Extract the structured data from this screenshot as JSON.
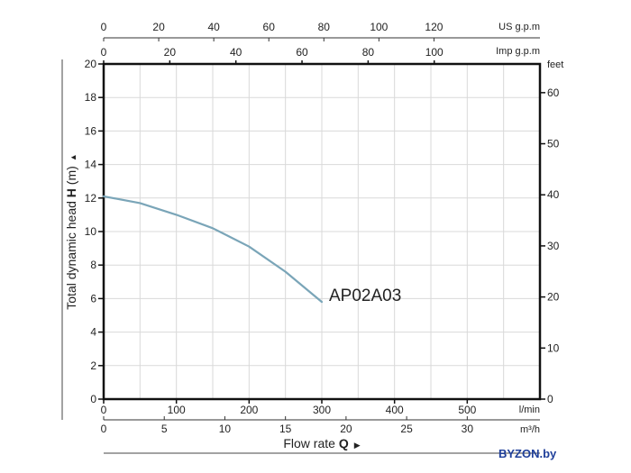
{
  "chart_data": {
    "type": "line",
    "ylabel_prefix": "Total dynamic head ",
    "ylabel_bold": "H",
    "ylabel_unit": " (m)",
    "xlabel_prefix": "Flow rate ",
    "xlabel_bold": "Q",
    "xlim": [
      0,
      600
    ],
    "ylim": [
      0,
      20
    ],
    "grid": true,
    "bottom_axis": {
      "unit": "l/min",
      "ticks": [
        "0",
        "100",
        "200",
        "300",
        "400",
        "500"
      ]
    },
    "bottom_axis_2": {
      "unit": "m³/h",
      "ticks": [
        "0",
        "5",
        "10",
        "15",
        "20",
        "25",
        "30"
      ]
    },
    "top_axis": {
      "unit": "Imp g.p.m",
      "ticks": [
        "0",
        "20",
        "40",
        "60",
        "80",
        "100"
      ]
    },
    "top_axis_2": {
      "unit": "US g.p.m",
      "ticks": [
        "0",
        "20",
        "40",
        "60",
        "80",
        "100",
        "120"
      ]
    },
    "left_axis": {
      "ticks": [
        "0",
        "2",
        "4",
        "6",
        "8",
        "10",
        "12",
        "14",
        "16",
        "18",
        "20"
      ]
    },
    "right_axis": {
      "unit": "feet",
      "ticks": [
        "0",
        "10",
        "20",
        "30",
        "40",
        "50",
        "60"
      ]
    },
    "series": [
      {
        "name": "AP02A03",
        "color": "#7aa5b8",
        "x": [
          0,
          50,
          100,
          150,
          200,
          250,
          300
        ],
        "y": [
          12.1,
          11.7,
          11.0,
          10.2,
          9.1,
          7.6,
          5.8
        ]
      }
    ]
  },
  "watermark": "BYZON.by"
}
